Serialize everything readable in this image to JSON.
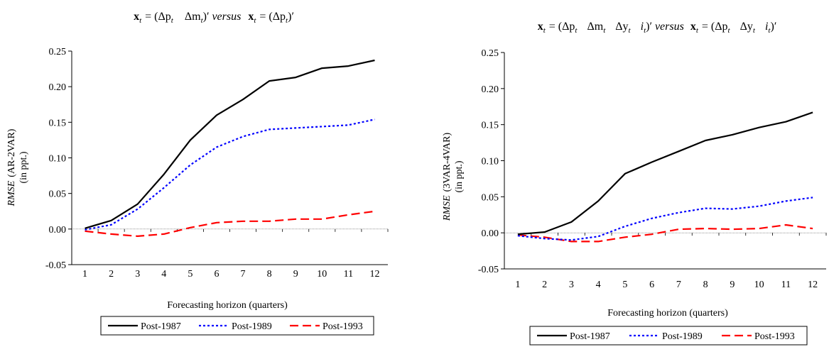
{
  "chart_data": [
    {
      "type": "line",
      "title_parts": {
        "x1": "x",
        "t1": "t",
        "eq1": "= (Δp",
        "t2": "t",
        "sp1": "Δm",
        "t3": "t",
        "close1": ")′",
        "versus": "versus",
        "x2": "x",
        "t4": "t",
        "eq2": "= (Δp",
        "t5": "t",
        "close2": ")′"
      },
      "ylabel_italic": "RMSE",
      "ylabel_rest": "(AR-2VAR)",
      "ylabel_unit": "(in ppt.)",
      "xlabel": "Forecasting horizon (quarters)",
      "ylim": [
        -0.05,
        0.25
      ],
      "yticks": [
        "-0.05",
        "0.00",
        "0.05",
        "0.10",
        "0.15",
        "0.20",
        "0.25"
      ],
      "categories": [
        "1",
        "2",
        "3",
        "4",
        "5",
        "6",
        "7",
        "8",
        "9",
        "10",
        "11",
        "12"
      ],
      "series": [
        {
          "name": "Post-1987",
          "color": "#000000",
          "dash": "solid",
          "values": [
            0.001,
            0.012,
            0.035,
            0.077,
            0.125,
            0.16,
            0.182,
            0.208,
            0.213,
            0.226,
            0.229,
            0.237
          ]
        },
        {
          "name": "Post-1989",
          "color": "#0000ff",
          "dash": "dotted",
          "values": [
            -0.001,
            0.006,
            0.028,
            0.058,
            0.09,
            0.115,
            0.13,
            0.14,
            0.142,
            0.144,
            0.146,
            0.154
          ]
        },
        {
          "name": "Post-1993",
          "color": "#ff0000",
          "dash": "dashed",
          "values": [
            -0.003,
            -0.007,
            -0.01,
            -0.007,
            0.002,
            0.009,
            0.011,
            0.011,
            0.014,
            0.014,
            0.02,
            0.025
          ]
        }
      ]
    },
    {
      "type": "line",
      "title_parts": {
        "x1": "x",
        "t1": "t",
        "eq1": "= (Δp",
        "t2": "t",
        "sp1": "Δm",
        "t3": "t",
        "sp2": "Δy",
        "t4": "t",
        "sp3": "i",
        "t5": "t",
        "close1": ")′",
        "versus": "versus",
        "x2": "x",
        "t6": "t",
        "eq2": "= (Δp",
        "t7": "t",
        "sp4": "Δy",
        "t8": "t",
        "sp5": "i",
        "t9": "t",
        "close2": ")′"
      },
      "ylabel_italic": "RMSE",
      "ylabel_rest": "(3VAR-4VAR)",
      "ylabel_unit": "(in ppt.)",
      "xlabel": "Forecasting horizon (quarters)",
      "ylim": [
        -0.05,
        0.25
      ],
      "yticks": [
        "-0.05",
        "0.00",
        "0.05",
        "0.10",
        "0.15",
        "0.20",
        "0.25"
      ],
      "categories": [
        "1",
        "2",
        "3",
        "4",
        "5",
        "6",
        "7",
        "8",
        "9",
        "10",
        "11",
        "12"
      ],
      "series": [
        {
          "name": "Post-1987",
          "color": "#000000",
          "dash": "solid",
          "values": [
            -0.002,
            0.001,
            0.015,
            0.044,
            0.082,
            0.098,
            0.113,
            0.128,
            0.136,
            0.146,
            0.154,
            0.167
          ]
        },
        {
          "name": "Post-1989",
          "color": "#0000ff",
          "dash": "dotted",
          "values": [
            -0.004,
            -0.008,
            -0.01,
            -0.005,
            0.009,
            0.02,
            0.028,
            0.034,
            0.033,
            0.037,
            0.044,
            0.049
          ]
        },
        {
          "name": "Post-1993",
          "color": "#ff0000",
          "dash": "dashed",
          "values": [
            -0.003,
            -0.006,
            -0.012,
            -0.012,
            -0.006,
            -0.002,
            0.005,
            0.006,
            0.005,
            0.006,
            0.011,
            0.006
          ]
        }
      ]
    }
  ]
}
